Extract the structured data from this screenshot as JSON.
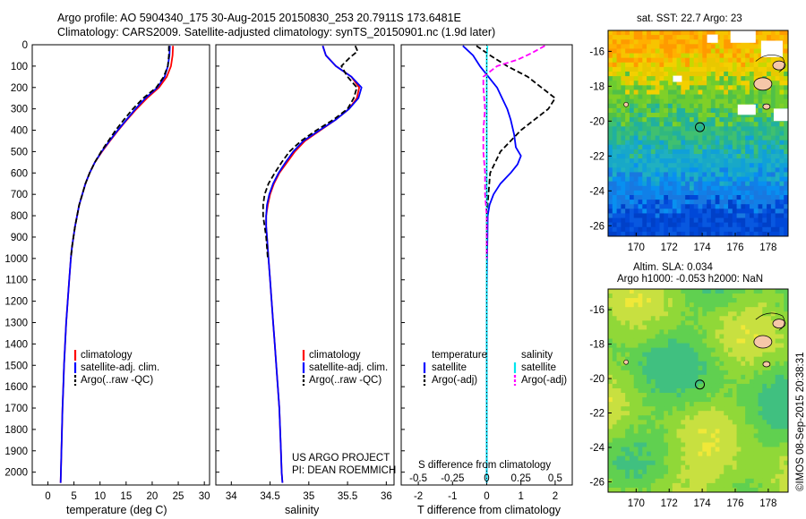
{
  "header": {
    "title_line1": "Argo profile: AO 5904340_175 30-Aug-2015 20150830_253 20.7911S 173.6481E",
    "title_line2": "Climatology: CARS2009. Satellite-adjusted climatology: synTS_20150901.nc (1.9d later)"
  },
  "colors": {
    "climatology": "#ff0000",
    "satellite": "#0000ff",
    "argo": "#000000",
    "sat_s": "#00e5ee",
    "argo_s": "#ff00ff"
  },
  "chart_data": [
    {
      "type": "line",
      "name": "temperature_profile",
      "xlabel": "temperature (deg C)",
      "ylabel": "",
      "xlim": [
        -3,
        31
      ],
      "ylim": [
        2060,
        0
      ],
      "xticks": [
        0,
        5,
        10,
        15,
        20,
        25,
        30
      ],
      "yticks": [
        0,
        100,
        200,
        300,
        400,
        500,
        600,
        700,
        800,
        900,
        1000,
        1100,
        1200,
        1300,
        1400,
        1500,
        1600,
        1700,
        1800,
        1900,
        2000
      ],
      "legend": [
        "climatology",
        "satellite-adj. clim.",
        "Argo(..raw -QC)"
      ],
      "legend_position": "lower-center",
      "series": [
        {
          "name": "climatology",
          "color": "#ff0000",
          "points": [
            [
              24.0,
              5
            ],
            [
              23.9,
              50
            ],
            [
              23.6,
              100
            ],
            [
              22.8,
              150
            ],
            [
              21.3,
              200
            ],
            [
              19.0,
              250
            ],
            [
              17.0,
              300
            ],
            [
              15.2,
              350
            ],
            [
              13.5,
              400
            ],
            [
              11.9,
              450
            ],
            [
              10.4,
              500
            ],
            [
              9.0,
              550
            ],
            [
              8.0,
              600
            ],
            [
              7.2,
              650
            ],
            [
              6.6,
              700
            ],
            [
              6.0,
              750
            ],
            [
              5.6,
              800
            ],
            [
              5.2,
              850
            ],
            [
              4.9,
              900
            ],
            [
              4.6,
              950
            ],
            [
              4.4,
              1000
            ],
            [
              4.1,
              1100
            ],
            [
              3.8,
              1200
            ],
            [
              3.5,
              1300
            ],
            [
              3.3,
              1400
            ],
            [
              3.1,
              1500
            ],
            [
              2.95,
              1600
            ],
            [
              2.8,
              1700
            ],
            [
              2.7,
              1800
            ],
            [
              2.6,
              1900
            ],
            [
              2.5,
              2000
            ],
            [
              2.45,
              2050
            ]
          ]
        },
        {
          "name": "satellite-adj. clim.",
          "color": "#0000ff",
          "points": [
            [
              23.4,
              5
            ],
            [
              23.3,
              50
            ],
            [
              23.0,
              100
            ],
            [
              22.4,
              150
            ],
            [
              21.0,
              200
            ],
            [
              18.7,
              250
            ],
            [
              16.8,
              300
            ],
            [
              15.1,
              350
            ],
            [
              13.4,
              400
            ],
            [
              11.8,
              450
            ],
            [
              10.3,
              500
            ],
            [
              9.0,
              550
            ],
            [
              8.0,
              600
            ],
            [
              7.2,
              650
            ],
            [
              6.6,
              700
            ],
            [
              6.0,
              750
            ],
            [
              5.6,
              800
            ],
            [
              5.2,
              850
            ],
            [
              4.9,
              900
            ],
            [
              4.6,
              950
            ],
            [
              4.4,
              1000
            ],
            [
              4.1,
              1100
            ],
            [
              3.8,
              1200
            ],
            [
              3.5,
              1300
            ],
            [
              3.3,
              1400
            ],
            [
              3.1,
              1500
            ],
            [
              2.95,
              1600
            ],
            [
              2.8,
              1700
            ],
            [
              2.7,
              1800
            ],
            [
              2.6,
              1900
            ],
            [
              2.5,
              2000
            ],
            [
              2.45,
              2050
            ]
          ]
        },
        {
          "name": "Argo(..raw -QC)",
          "color": "#000000",
          "dashed": true,
          "points": [
            [
              23.2,
              5
            ],
            [
              23.2,
              50
            ],
            [
              23.0,
              100
            ],
            [
              22.2,
              150
            ],
            [
              20.8,
              200
            ],
            [
              18.3,
              250
            ],
            [
              16.3,
              300
            ],
            [
              14.6,
              350
            ],
            [
              13.0,
              400
            ],
            [
              11.6,
              450
            ],
            [
              10.2,
              500
            ],
            [
              9.0,
              550
            ],
            [
              8.0,
              600
            ],
            [
              7.2,
              650
            ],
            [
              6.6,
              700
            ],
            [
              6.0,
              750
            ],
            [
              5.6,
              800
            ],
            [
              5.2,
              850
            ],
            [
              4.9,
              900
            ],
            [
              4.6,
              950
            ],
            [
              4.4,
              1000
            ]
          ]
        }
      ]
    },
    {
      "type": "line",
      "name": "salinity_profile",
      "xlabel": "salinity",
      "xlim": [
        33.8,
        36.1
      ],
      "ylim": [
        2060,
        0
      ],
      "xticks": [
        34,
        34.5,
        35,
        35.5,
        36
      ],
      "legend": [
        "climatology",
        "satellite-adj. clim.",
        "Argo(..raw -QC)"
      ],
      "legend_position": "lower-right",
      "annotation": [
        "US ARGO PROJECT",
        "PI: DEAN ROEMMICH"
      ],
      "series": [
        {
          "name": "climatology",
          "color": "#ff0000",
          "points": [
            [
              35.18,
              5
            ],
            [
              35.22,
              50
            ],
            [
              35.35,
              100
            ],
            [
              35.55,
              150
            ],
            [
              35.65,
              200
            ],
            [
              35.62,
              250
            ],
            [
              35.52,
              300
            ],
            [
              35.35,
              350
            ],
            [
              35.15,
              400
            ],
            [
              34.95,
              450
            ],
            [
              34.82,
              500
            ],
            [
              34.72,
              550
            ],
            [
              34.62,
              600
            ],
            [
              34.55,
              650
            ],
            [
              34.5,
              700
            ],
            [
              34.47,
              750
            ],
            [
              34.45,
              800
            ],
            [
              34.45,
              850
            ],
            [
              34.46,
              900
            ],
            [
              34.48,
              1000
            ],
            [
              34.5,
              1100
            ],
            [
              34.52,
              1200
            ],
            [
              34.54,
              1300
            ],
            [
              34.56,
              1400
            ],
            [
              34.58,
              1500
            ],
            [
              34.6,
              1600
            ],
            [
              34.62,
              1700
            ],
            [
              34.63,
              1800
            ],
            [
              34.64,
              1900
            ],
            [
              34.65,
              2000
            ],
            [
              34.66,
              2050
            ]
          ]
        },
        {
          "name": "satellite-adj. clim.",
          "color": "#0000ff",
          "points": [
            [
              35.18,
              5
            ],
            [
              35.22,
              50
            ],
            [
              35.35,
              100
            ],
            [
              35.55,
              150
            ],
            [
              35.68,
              200
            ],
            [
              35.64,
              250
            ],
            [
              35.52,
              300
            ],
            [
              35.35,
              350
            ],
            [
              35.14,
              400
            ],
            [
              34.93,
              450
            ],
            [
              34.8,
              500
            ],
            [
              34.7,
              550
            ],
            [
              34.61,
              600
            ],
            [
              34.54,
              650
            ],
            [
              34.49,
              700
            ],
            [
              34.46,
              750
            ],
            [
              34.45,
              800
            ],
            [
              34.45,
              850
            ],
            [
              34.46,
              900
            ],
            [
              34.48,
              1000
            ],
            [
              34.5,
              1100
            ],
            [
              34.52,
              1200
            ],
            [
              34.54,
              1300
            ],
            [
              34.56,
              1400
            ],
            [
              34.58,
              1500
            ],
            [
              34.6,
              1600
            ],
            [
              34.62,
              1700
            ],
            [
              34.63,
              1800
            ],
            [
              34.64,
              1900
            ],
            [
              34.65,
              2000
            ],
            [
              34.66,
              2050
            ]
          ]
        },
        {
          "name": "Argo(..raw -QC)",
          "color": "#000000",
          "dashed": true,
          "points": [
            [
              35.6,
              5
            ],
            [
              35.63,
              30
            ],
            [
              35.53,
              60
            ],
            [
              35.42,
              100
            ],
            [
              35.5,
              150
            ],
            [
              35.62,
              200
            ],
            [
              35.58,
              250
            ],
            [
              35.5,
              300
            ],
            [
              35.32,
              350
            ],
            [
              35.1,
              400
            ],
            [
              34.9,
              450
            ],
            [
              34.75,
              500
            ],
            [
              34.65,
              550
            ],
            [
              34.56,
              600
            ],
            [
              34.48,
              650
            ],
            [
              34.43,
              700
            ],
            [
              34.41,
              750
            ],
            [
              34.41,
              800
            ],
            [
              34.43,
              850
            ],
            [
              34.45,
              900
            ],
            [
              34.47,
              1000
            ]
          ]
        }
      ]
    },
    {
      "type": "line",
      "name": "difference_profile",
      "xlabel": "T difference from climatology",
      "xlabel_top": "S difference from climatology",
      "xlim": [
        -2.5,
        2.5
      ],
      "ylim": [
        2060,
        0
      ],
      "xticks": [
        -2,
        -1,
        0,
        1,
        2
      ],
      "xticks_s": [
        -0.5,
        -0.25,
        0,
        0.25,
        0.5
      ],
      "legend_t_title": "temperature",
      "legend_s_title": "salinity",
      "legend_t": [
        "satellite",
        "Argo(-adj)"
      ],
      "legend_s": [
        "satellite",
        "Argo(-adj)"
      ],
      "series": [
        {
          "name": "T satellite",
          "color": "#0000ff",
          "points": [
            [
              -0.7,
              5
            ],
            [
              -0.4,
              50
            ],
            [
              -0.2,
              100
            ],
            [
              0.05,
              150
            ],
            [
              0.3,
              200
            ],
            [
              0.6,
              300
            ],
            [
              0.7,
              350
            ],
            [
              0.8,
              420
            ],
            [
              0.85,
              480
            ],
            [
              1.0,
              520
            ],
            [
              0.9,
              560
            ],
            [
              0.7,
              600
            ],
            [
              0.4,
              650
            ],
            [
              0.2,
              700
            ],
            [
              0.08,
              750
            ],
            [
              0.03,
              800
            ],
            [
              0.02,
              900
            ],
            [
              0.01,
              1000
            ],
            [
              0.0,
              1200
            ],
            [
              0.0,
              1500
            ],
            [
              0.0,
              2050
            ]
          ]
        },
        {
          "name": "T Argo(-adj)",
          "color": "#000000",
          "dashed": true,
          "points": [
            [
              -0.3,
              5
            ],
            [
              0.1,
              50
            ],
            [
              0.6,
              100
            ],
            [
              1.2,
              150
            ],
            [
              1.6,
              200
            ],
            [
              2.0,
              250
            ],
            [
              1.8,
              300
            ],
            [
              1.4,
              350
            ],
            [
              1.0,
              400
            ],
            [
              0.7,
              450
            ],
            [
              0.4,
              500
            ],
            [
              0.25,
              550
            ],
            [
              0.1,
              600
            ],
            [
              0.05,
              700
            ],
            [
              0.0,
              800
            ],
            [
              0.0,
              1000
            ]
          ]
        },
        {
          "name": "S satellite",
          "color": "#00e5ee",
          "points": [
            [
              0.02,
              5
            ],
            [
              0.0,
              50
            ],
            [
              0.0,
              100
            ],
            [
              0.0,
              200
            ],
            [
              0.0,
              400
            ],
            [
              0.0,
              600
            ],
            [
              0.0,
              800
            ],
            [
              0.0,
              1000
            ],
            [
              0.0,
              1500
            ],
            [
              0.0,
              2050
            ]
          ]
        },
        {
          "name": "S Argo(-adj)",
          "color": "#ff00ff",
          "dashed": true,
          "points": [
            [
              1.7,
              5
            ],
            [
              1.3,
              40
            ],
            [
              0.9,
              70
            ],
            [
              0.3,
              100
            ],
            [
              -0.1,
              150
            ],
            [
              -0.1,
              200
            ],
            [
              -0.05,
              300
            ],
            [
              -0.1,
              400
            ],
            [
              -0.1,
              500
            ],
            [
              -0.05,
              600
            ],
            [
              -0.05,
              700
            ],
            [
              0.0,
              800
            ],
            [
              0.0,
              1000
            ]
          ]
        }
      ]
    }
  ],
  "maps": {
    "top": {
      "title": "sat. SST: 22.7 Argo: 23",
      "x_ticks": [
        "170",
        "172",
        "174",
        "176",
        "178"
      ],
      "y_ticks": [
        "-16",
        "-18",
        "-20",
        "-22",
        "-24",
        "-26"
      ]
    },
    "bottom": {
      "title_line1": "Altim. SLA: 0.034",
      "title_line2": "Argo h1000: -0.053 h2000: NaN",
      "x_ticks": [
        "170",
        "172",
        "174",
        "176",
        "178"
      ],
      "y_ticks": [
        "-16",
        "-18",
        "-20",
        "-22",
        "-24",
        "-26"
      ]
    },
    "credit": "©IMOS 08-Sep-2015 20:38:31"
  }
}
